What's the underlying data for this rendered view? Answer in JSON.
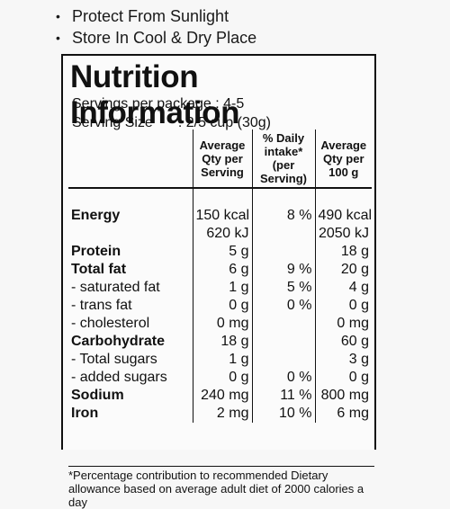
{
  "storage_notes": [
    "Protect From Sunlight",
    "Store In Cool & Dry Place"
  ],
  "panel": {
    "title": "Nutrition Information",
    "servings_line": "Servings per package : 4-5",
    "serving_size_label": "Serving Size",
    "serving_size_value": ": 2/5 cup (30g)"
  },
  "table": {
    "headers": [
      "",
      "Average Qty per Serving",
      "% Daily intake* (per Serving)",
      "Average Qty per 100 g"
    ],
    "rows": [
      {
        "name": "Energy",
        "bold": true,
        "indent": false,
        "serving": "150 kcal",
        "daily": "8 %",
        "per100": "490 kcal"
      },
      {
        "name": "",
        "bold": false,
        "indent": false,
        "serving": "620 kJ",
        "daily": "",
        "per100": "2050 kJ"
      },
      {
        "name": "Protein",
        "bold": true,
        "indent": false,
        "serving": "5 g",
        "daily": "",
        "per100": "18 g"
      },
      {
        "name": "Total fat",
        "bold": true,
        "indent": false,
        "serving": "6 g",
        "daily": "9 %",
        "per100": "20 g"
      },
      {
        "name": "- saturated fat",
        "bold": false,
        "indent": true,
        "serving": "1 g",
        "daily": "5 %",
        "per100": "4 g"
      },
      {
        "name": "- trans fat",
        "bold": false,
        "indent": true,
        "serving": "0 g",
        "daily": "0 %",
        "per100": "0 g"
      },
      {
        "name": "- cholesterol",
        "bold": false,
        "indent": true,
        "serving": "0 mg",
        "daily": "",
        "per100": "0 mg"
      },
      {
        "name": "Carbohydrate",
        "bold": true,
        "indent": false,
        "serving": "18 g",
        "daily": "",
        "per100": "60 g"
      },
      {
        "name": "- Total sugars",
        "bold": false,
        "indent": true,
        "serving": "1 g",
        "daily": "",
        "per100": "3 g"
      },
      {
        "name": "- added sugars",
        "bold": false,
        "indent": true,
        "serving": "0 g",
        "daily": "0 %",
        "per100": "0 g"
      },
      {
        "name": "Sodium",
        "bold": true,
        "indent": false,
        "serving": "240 mg",
        "daily": "11 %",
        "per100": "800 mg"
      },
      {
        "name": "Iron",
        "bold": true,
        "indent": false,
        "serving": "2 mg",
        "daily": "10 %",
        "per100": "6 mg"
      }
    ]
  },
  "footnote": "*Percentage contribution to recommended Dietary allowance based on average adult diet of 2000 calories a day"
}
